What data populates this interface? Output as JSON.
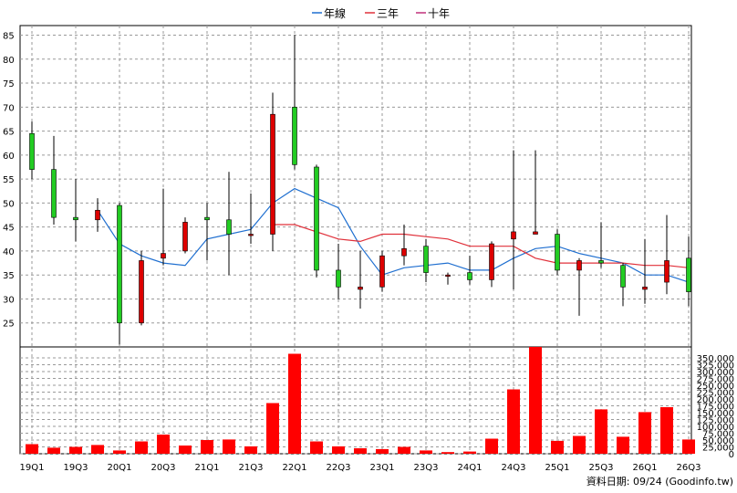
{
  "chart_data": {
    "type": "candlestick",
    "legend": [
      {
        "name": "年線",
        "color": "#1f6fd0"
      },
      {
        "name": "三年",
        "color": "#e0303a"
      },
      {
        "name": "十年",
        "color": "#c0307a"
      }
    ],
    "credit": "資料日期: 09/24  (Goodinfo.tw)",
    "colors": {
      "up": "#dd0000",
      "down": "#22cc22",
      "volume": "#ff0000",
      "grid": "#9a9a9a"
    },
    "price_axis": {
      "ylim": [
        20,
        87
      ],
      "ticks": [
        25,
        30,
        35,
        40,
        45,
        50,
        55,
        60,
        65,
        70,
        75,
        80,
        85
      ]
    },
    "volume_axis": {
      "ylim": [
        0,
        390000
      ],
      "ticks": [
        0,
        25000,
        50000,
        75000,
        100000,
        125000,
        150000,
        175000,
        200000,
        225000,
        250000,
        275000,
        300000,
        325000,
        350000
      ],
      "tick_labels": [
        "0",
        "25,000",
        "50,000",
        "75,000",
        "100,000",
        "125,000",
        "150,000",
        "175,000",
        "200,000",
        "225,000",
        "250,000",
        "275,000",
        "300,000",
        "325,000",
        "350,000"
      ]
    },
    "x_labels": [
      {
        "index": 0,
        "label": "19Q1"
      },
      {
        "index": 2,
        "label": "19Q3"
      },
      {
        "index": 4,
        "label": "20Q1"
      },
      {
        "index": 6,
        "label": "20Q3"
      },
      {
        "index": 8,
        "label": "21Q1"
      },
      {
        "index": 10,
        "label": "21Q3"
      },
      {
        "index": 12,
        "label": "22Q1"
      },
      {
        "index": 14,
        "label": "22Q3"
      },
      {
        "index": 16,
        "label": "23Q1"
      },
      {
        "index": 18,
        "label": "23Q3"
      },
      {
        "index": 20,
        "label": "24Q1"
      },
      {
        "index": 22,
        "label": "24Q3"
      },
      {
        "index": 24,
        "label": "25Q1"
      },
      {
        "index": 26,
        "label": "25Q3"
      },
      {
        "index": 28,
        "label": "26Q1"
      },
      {
        "index": 30,
        "label": "26Q3"
      }
    ],
    "candles": [
      {
        "open": 64.5,
        "high": 67,
        "low": 55,
        "close": 57
      },
      {
        "open": 57,
        "high": 64,
        "low": 45.5,
        "close": 47
      },
      {
        "open": 47,
        "high": 55,
        "low": 42,
        "close": 46.5
      },
      {
        "open": 46.5,
        "high": 51,
        "low": 44,
        "close": 48.5
      },
      {
        "open": 49.5,
        "high": 50,
        "low": 20.5,
        "close": 25
      },
      {
        "open": 25,
        "high": 40,
        "low": 24.5,
        "close": 38
      },
      {
        "open": 38.5,
        "high": 53,
        "low": 37,
        "close": 39.5
      },
      {
        "open": 40,
        "high": 47,
        "low": 39.5,
        "close": 46
      },
      {
        "open": 47,
        "high": 50,
        "low": 38,
        "close": 46.5
      },
      {
        "open": 46.5,
        "high": 56.5,
        "low": 35,
        "close": 43.5
      },
      {
        "open": 43.5,
        "high": 52,
        "low": 41.5,
        "close": 43.5
      },
      {
        "open": 43.5,
        "high": 73,
        "low": 40,
        "close": 68.5
      },
      {
        "open": 70,
        "high": 85,
        "low": 57,
        "close": 58
      },
      {
        "open": 57.5,
        "high": 58,
        "low": 34.5,
        "close": 36
      },
      {
        "open": 36,
        "high": 41.5,
        "low": 30,
        "close": 32.5
      },
      {
        "open": 32,
        "high": 40,
        "low": 28,
        "close": 32.5
      },
      {
        "open": 32.5,
        "high": 40,
        "low": 31.5,
        "close": 39
      },
      {
        "open": 39,
        "high": 45.5,
        "low": 37,
        "close": 40.5
      },
      {
        "open": 41,
        "high": 42.5,
        "low": 33.5,
        "close": 35.5
      },
      {
        "open": 35,
        "high": 35.5,
        "low": 33,
        "close": 35
      },
      {
        "open": 35.5,
        "high": 39,
        "low": 33,
        "close": 34
      },
      {
        "open": 34,
        "high": 42,
        "low": 32.5,
        "close": 41.5
      },
      {
        "open": 42.5,
        "high": 61,
        "low": 32,
        "close": 44
      },
      {
        "open": 43.5,
        "high": 61,
        "low": 43.5,
        "close": 44
      },
      {
        "open": 43.5,
        "high": 44.5,
        "low": 35,
        "close": 36
      },
      {
        "open": 36,
        "high": 38.5,
        "low": 26.5,
        "close": 38
      },
      {
        "open": 38,
        "high": 46,
        "low": 36.5,
        "close": 37.5
      },
      {
        "open": 37,
        "high": 37.5,
        "low": 28.5,
        "close": 32.5
      },
      {
        "open": 32,
        "high": 42.5,
        "low": 29,
        "close": 32.5
      },
      {
        "open": 33.5,
        "high": 47.5,
        "low": 31,
        "close": 38
      },
      {
        "open": 38.5,
        "high": 43,
        "low": 28.5,
        "close": 31.5
      }
    ],
    "volume": [
      35000,
      22000,
      25000,
      32000,
      12000,
      45000,
      70000,
      30000,
      50000,
      52000,
      27000,
      185000,
      365000,
      45000,
      27000,
      20000,
      17000,
      25000,
      12000,
      6000,
      8000,
      55000,
      235000,
      390000,
      47000,
      65000,
      162000,
      62000,
      152000,
      170000,
      52000
    ],
    "series": [
      {
        "name": "年線",
        "values": [
          null,
          null,
          null,
          48.5,
          41.5,
          39,
          37.5,
          37,
          42.5,
          43.5,
          44.5,
          50,
          53,
          51,
          49,
          41,
          35,
          36.5,
          37,
          37.5,
          36,
          36,
          38.5,
          40.5,
          41,
          39.5,
          38.5,
          37.5,
          35,
          35,
          33.5
        ]
      },
      {
        "name": "三年",
        "values": [
          null,
          null,
          null,
          null,
          null,
          null,
          null,
          null,
          null,
          null,
          null,
          45.5,
          45.5,
          44,
          42.5,
          42,
          43.5,
          43.5,
          43,
          42.5,
          41,
          41,
          41,
          38.5,
          37.5,
          37.5,
          37.5,
          37.5,
          37,
          37,
          36.5
        ]
      }
    ]
  }
}
